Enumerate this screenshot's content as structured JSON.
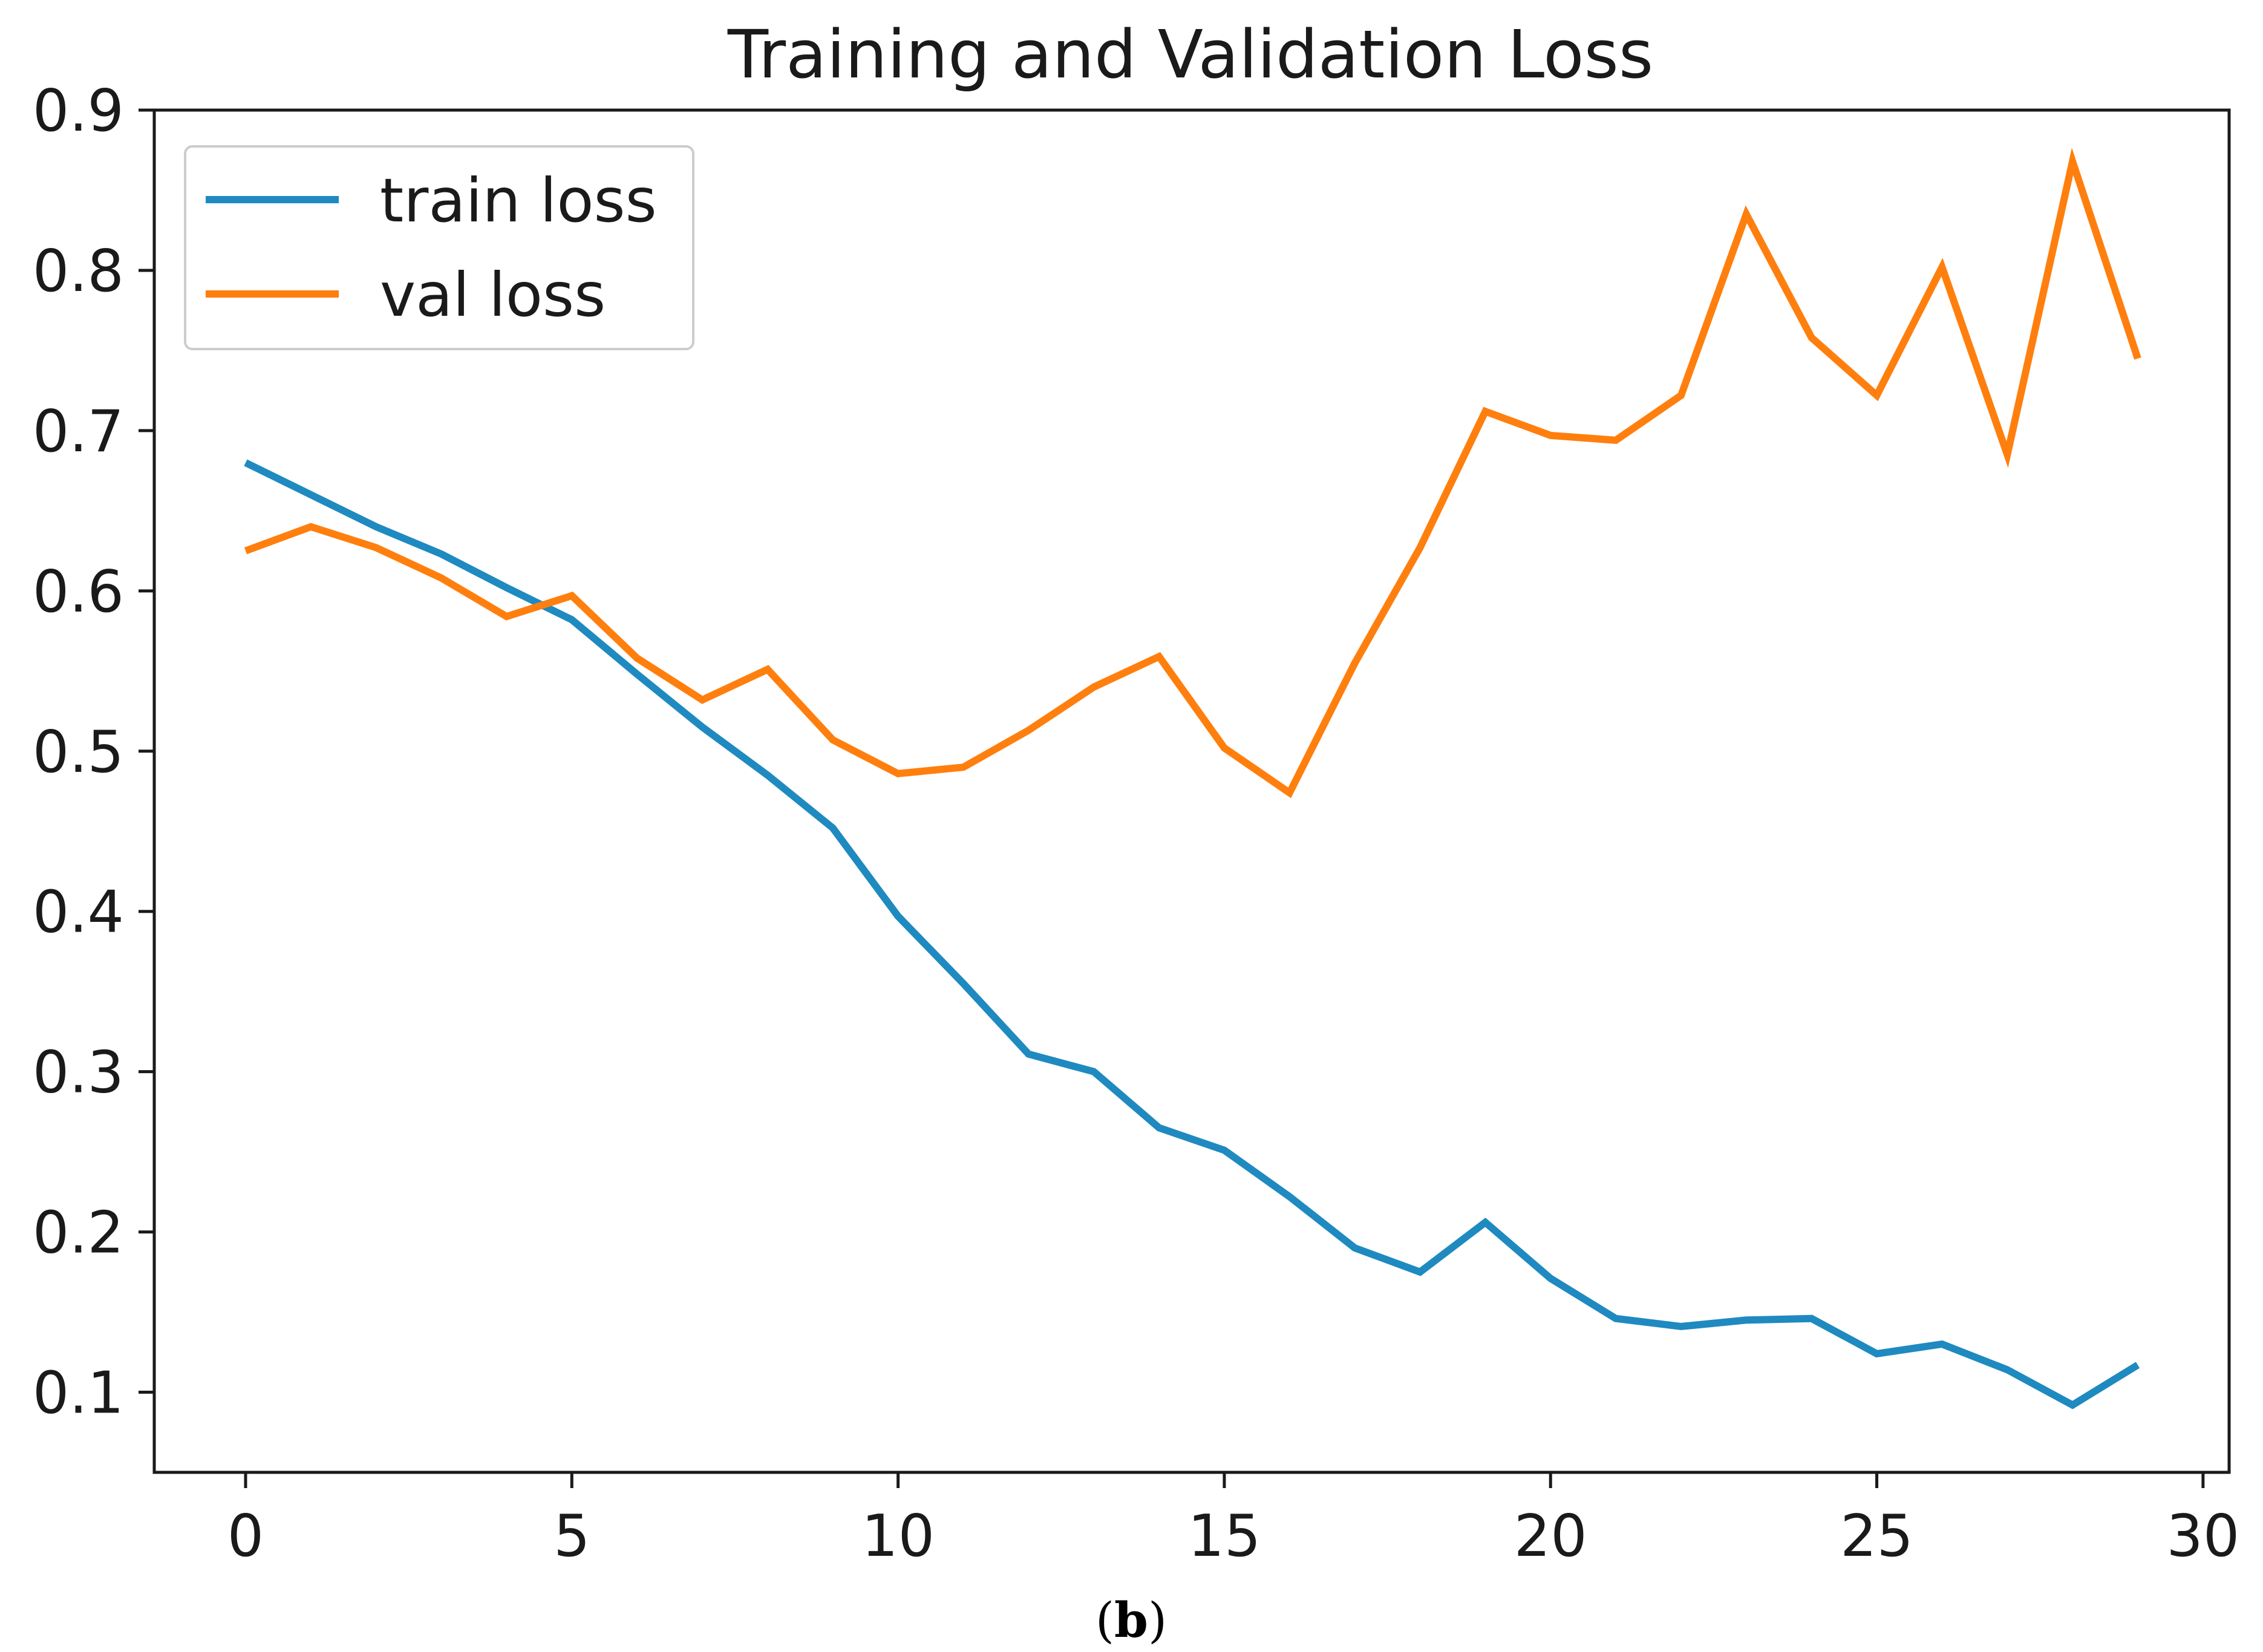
{
  "chart_data": {
    "type": "line",
    "title": "Training and Validation Loss",
    "xlabel": "",
    "ylabel": "",
    "xlim": [
      -1.4,
      30.4
    ],
    "ylim": [
      0.05,
      0.9
    ],
    "x_ticks": [
      "0",
      "5",
      "10",
      "15",
      "20",
      "25",
      "30"
    ],
    "y_ticks": [
      "0.1",
      "0.2",
      "0.3",
      "0.4",
      "0.5",
      "0.6",
      "0.7",
      "0.8",
      "0.9"
    ],
    "legend_position": "top-left",
    "grid": false,
    "x": [
      0,
      1,
      2,
      3,
      4,
      5,
      6,
      7,
      8,
      9,
      10,
      11,
      12,
      13,
      14,
      15,
      16,
      17,
      18,
      19,
      20,
      21,
      22,
      23,
      24,
      25,
      26,
      27,
      28,
      29
    ],
    "series": [
      {
        "name": "train loss",
        "color": "#1f8ac0",
        "values": [
          0.68,
          0.66,
          0.64,
          0.623,
          0.602,
          0.582,
          0.548,
          0.515,
          0.485,
          0.452,
          0.397,
          0.355,
          0.311,
          0.3,
          0.265,
          0.251,
          0.222,
          0.19,
          0.175,
          0.206,
          0.171,
          0.146,
          0.141,
          0.145,
          0.146,
          0.124,
          0.13,
          0.114,
          0.092,
          0.117
        ]
      },
      {
        "name": "val loss",
        "color": "#ff7f0e",
        "values": [
          0.625,
          0.64,
          0.627,
          0.608,
          0.584,
          0.597,
          0.558,
          0.532,
          0.551,
          0.507,
          0.486,
          0.49,
          0.513,
          0.54,
          0.559,
          0.502,
          0.474,
          0.555,
          0.627,
          0.712,
          0.697,
          0.694,
          0.722,
          0.835,
          0.758,
          0.722,
          0.802,
          0.685,
          0.868,
          0.745
        ]
      }
    ]
  },
  "caption": {
    "open": "(",
    "label": "b",
    "close": ")"
  }
}
